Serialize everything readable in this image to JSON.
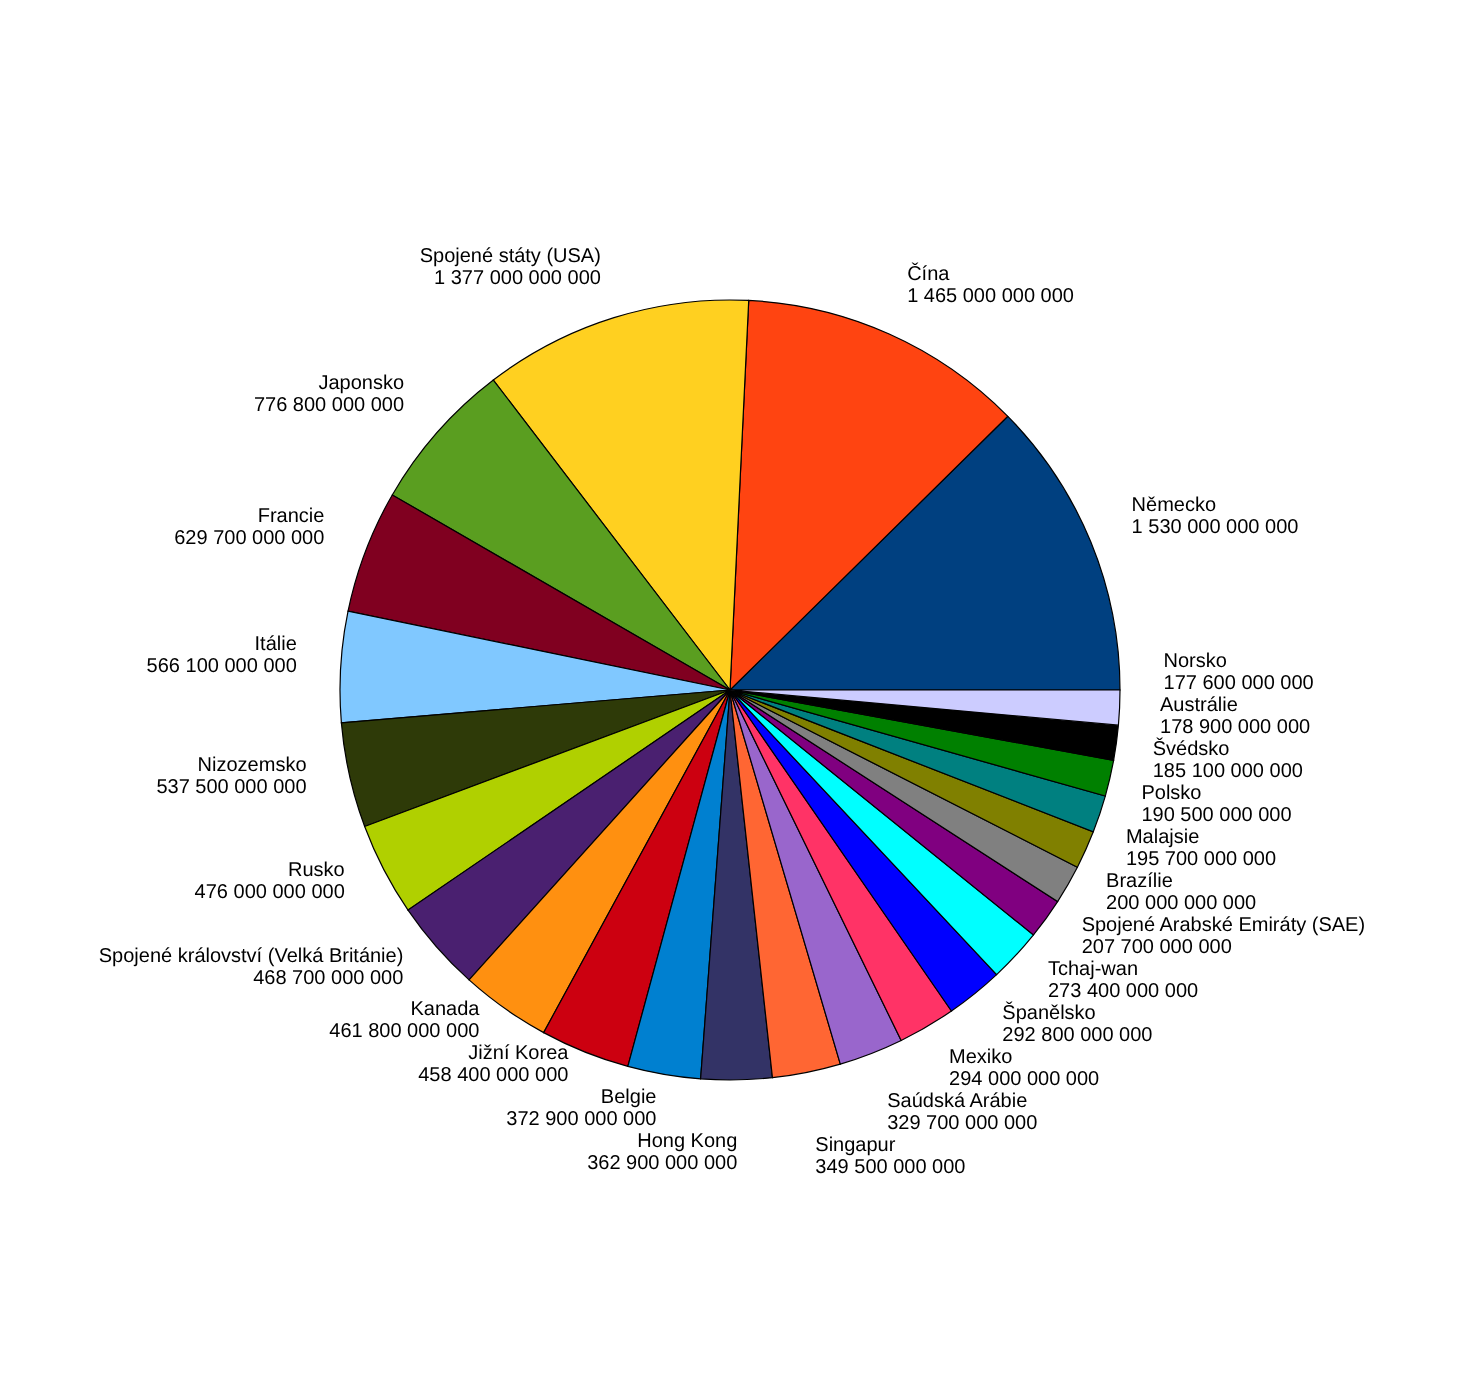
{
  "chart_data": {
    "type": "pie",
    "categories": [
      "Německo",
      "Čína",
      "Spojené státy (USA)",
      "Japonsko",
      "Francie",
      "Itálie",
      "Nizozemsko",
      "Rusko",
      "Spojené království (Velká Británie)",
      "Kanada",
      "Jižní Korea",
      "Belgie",
      "Hong Kong",
      "Singapur",
      "Saúdská Arábie",
      "Mexiko",
      "Španělsko",
      "Tchaj-wan",
      "Spojené Arabské Emiráty (SAE)",
      "Brazílie",
      "Malajsie",
      "Polsko",
      "Švédsko",
      "Austrálie",
      "Norsko"
    ],
    "values": [
      1530000000000,
      1465000000000,
      1377000000000,
      776800000000,
      629700000000,
      566100000000,
      537500000000,
      476000000000,
      468700000000,
      461800000000,
      458400000000,
      372900000000,
      362900000000,
      349500000000,
      329700000000,
      294000000000,
      292800000000,
      273400000000,
      207700000000,
      200000000000,
      195700000000,
      190500000000,
      185100000000,
      178900000000,
      177600000000
    ],
    "value_labels": [
      "1 530 000 000 000",
      "1 465 000 000 000",
      "1 377 000 000 000",
      "776 800 000 000",
      "629 700 000 000",
      "566 100 000 000",
      "537 500 000 000",
      "476 000 000 000",
      "468 700 000 000",
      "461 800 000 000",
      "458 400 000 000",
      "372 900 000 000",
      "362 900 000 000",
      "349 500 000 000",
      "329 700 000 000",
      "294 000 000 000",
      "292 800 000 000",
      "273 400 000 000",
      "207 700 000 000",
      "200 000 000 000",
      "195 700 000 000",
      "190 500 000 000",
      "185 100 000 000",
      "178 900 000 000",
      "177 600 000 000"
    ],
    "colors": [
      "#004080",
      "#ff4411",
      "#ffd020",
      "#5a9e20",
      "#800020",
      "#80c8ff",
      "#2e3a08",
      "#b0d000",
      "#4a2070",
      "#ff9010",
      "#cc0010",
      "#0080d0",
      "#333366",
      "#ff6633",
      "#9966cc",
      "#ff3366",
      "#0000ff",
      "#00ffff",
      "#800080",
      "#808080",
      "#808000",
      "#008080",
      "#008000",
      "#000000",
      "#ccccff"
    ]
  }
}
